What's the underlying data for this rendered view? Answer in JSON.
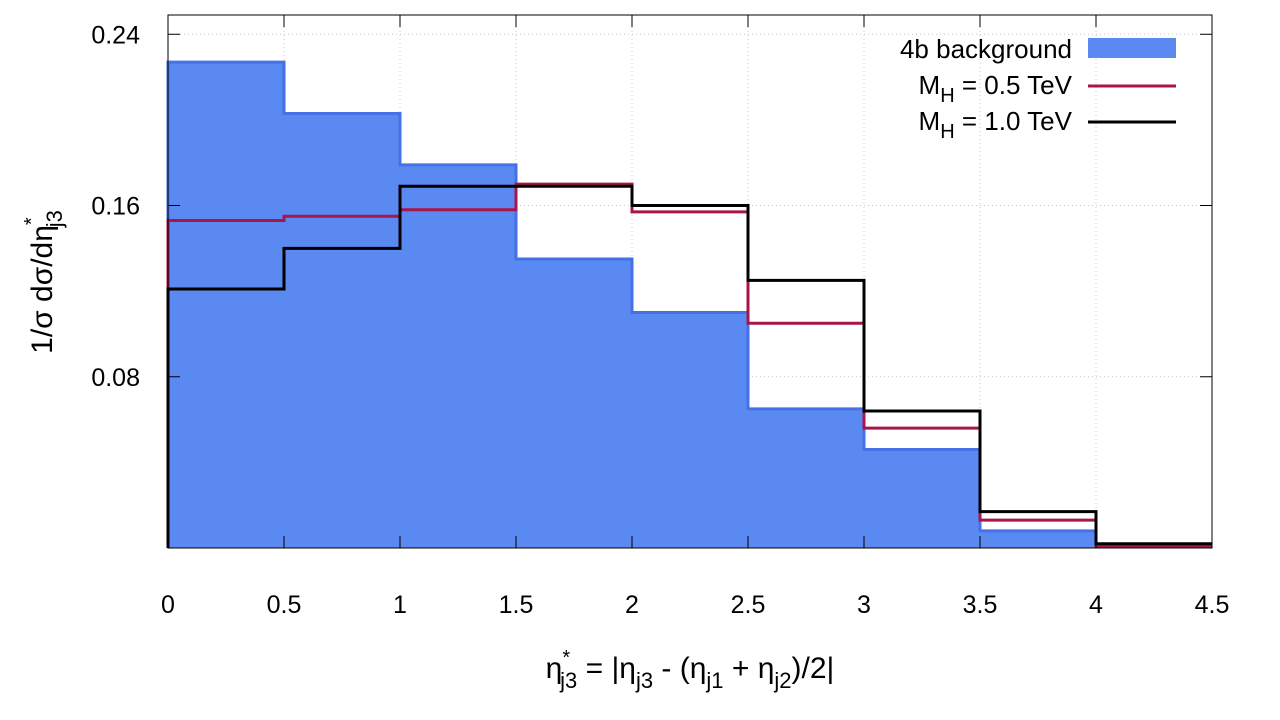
{
  "chart_data": {
    "type": "histogram",
    "bin_edges": [
      0,
      0.5,
      1,
      1.5,
      2,
      2.5,
      3,
      3.5,
      4,
      4.5
    ],
    "series": [
      {
        "name": "4b background",
        "style": "filled",
        "color": "#5a89f2",
        "edge_color": "#4472e6",
        "values": [
          0.227,
          0.203,
          0.179,
          0.135,
          0.11,
          0.065,
          0.046,
          0.008,
          0.0005
        ]
      },
      {
        "name": "M_H = 0.5 TeV",
        "style": "step",
        "color": "#a8154a",
        "values": [
          0.153,
          0.155,
          0.158,
          0.17,
          0.157,
          0.105,
          0.056,
          0.013,
          0.001
        ]
      },
      {
        "name": "M_H = 1.0 TeV",
        "style": "step",
        "color": "#000000",
        "values": [
          0.121,
          0.14,
          0.169,
          0.169,
          0.16,
          0.125,
          0.064,
          0.017,
          0.002
        ]
      }
    ],
    "xlim": [
      0,
      4.5
    ],
    "ylim": [
      0,
      0.249
    ],
    "x_ticks": [
      "0",
      "0.5",
      "1",
      "1.5",
      "2",
      "2.5",
      "3",
      "3.5",
      "4",
      "4.5"
    ],
    "y_ticks": [
      "0.08",
      "0.16",
      "0.24"
    ],
    "grid": true,
    "legend_position": "top-right",
    "xlabel": {
      "parts": [
        "η",
        "*",
        "j3",
        " = |η",
        "j3",
        " - (η",
        "j1",
        " + η",
        "j2",
        ")/2|"
      ]
    },
    "ylabel": {
      "parts": [
        "1/σ dσ/dη",
        "*",
        "j3"
      ]
    },
    "legend": {
      "bg": {
        "text": "4b background"
      },
      "m05": {
        "prefix": "M",
        "sub": "H",
        "suffix": " = 0.5 TeV"
      },
      "m10": {
        "prefix": "M",
        "sub": "H",
        "suffix": " = 1.0 TeV"
      }
    }
  }
}
